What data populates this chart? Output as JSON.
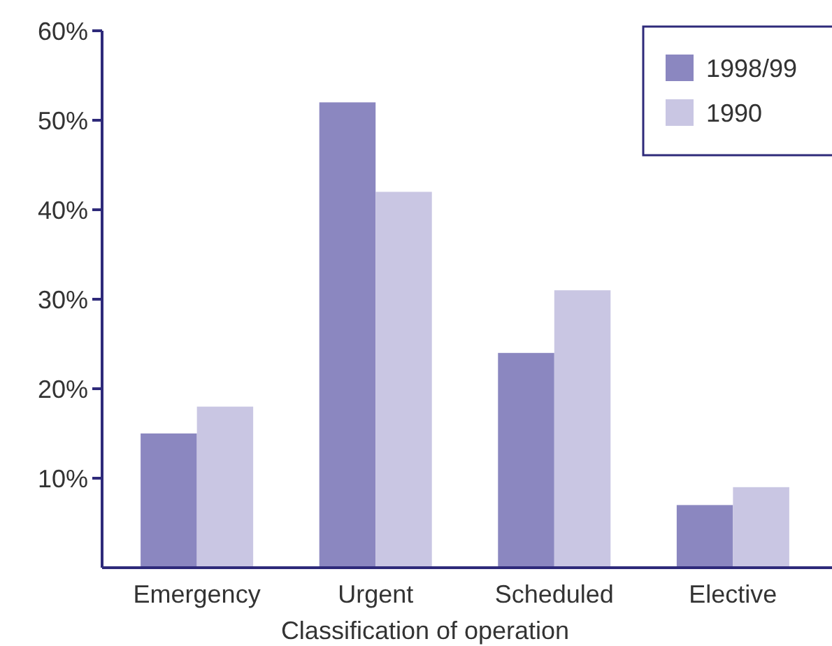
{
  "chart_data": {
    "type": "bar",
    "xlabel": "Classification of operation",
    "categories": [
      "Emergency",
      "Urgent",
      "Scheduled",
      "Elective"
    ],
    "series": [
      {
        "name": "1998/99",
        "color": "#8b87c0",
        "values": [
          15,
          52,
          24,
          7
        ]
      },
      {
        "name": "1990",
        "color": "#c9c6e3",
        "values": [
          18,
          42,
          31,
          9
        ]
      }
    ],
    "ylim": [
      0,
      60
    ],
    "yticks": [
      {
        "value": 10,
        "label": "10%"
      },
      {
        "value": 20,
        "label": "20%"
      },
      {
        "value": 30,
        "label": "30%"
      },
      {
        "value": 40,
        "label": "40%"
      },
      {
        "value": 50,
        "label": "50%"
      },
      {
        "value": 60,
        "label": "60%"
      }
    ],
    "grid": false,
    "legend": "top right"
  }
}
